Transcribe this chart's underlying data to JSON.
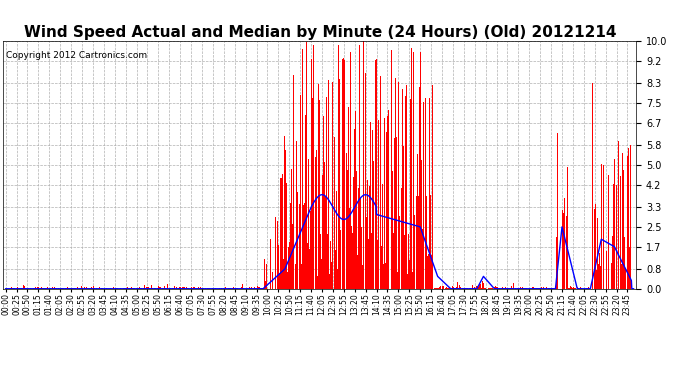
{
  "title": "Wind Speed Actual and Median by Minute (24 Hours) (Old) 20121214",
  "copyright": "Copyright 2012 Cartronics.com",
  "yticks": [
    0.0,
    0.8,
    1.7,
    2.5,
    3.3,
    4.2,
    5.0,
    5.8,
    6.7,
    7.5,
    8.3,
    9.2,
    10.0
  ],
  "ylim": [
    0.0,
    10.0
  ],
  "background_color": "#ffffff",
  "plot_bg_color": "#ffffff",
  "grid_color": "#b0b0b0",
  "wind_color": "#ff0000",
  "median_color": "#0000ff",
  "title_fontsize": 11,
  "tick_interval": 25
}
